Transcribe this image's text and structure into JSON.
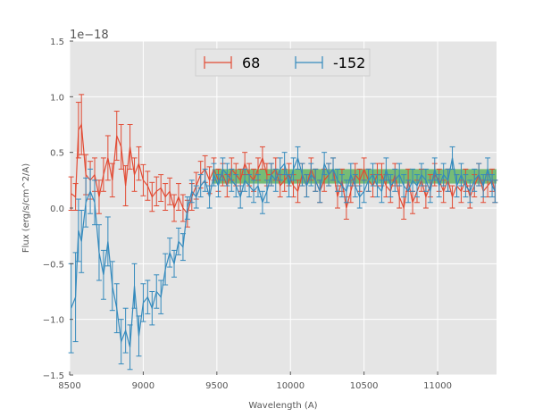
{
  "chart_data": {
    "type": "line",
    "title": "",
    "xlabel": "Wavelength (A)",
    "ylabel": "Flux (erg/s/cm^2/A)",
    "y_offset_label": "1e−18",
    "xlim": [
      8500,
      11400
    ],
    "ylim": [
      -1.5,
      1.5
    ],
    "xticks": [
      8500,
      9000,
      9500,
      10000,
      10500,
      11000
    ],
    "yticks": [
      -1.5,
      -1.0,
      -0.5,
      0.0,
      0.5,
      1.0,
      1.5
    ],
    "xtick_labels": [
      "8500",
      "9000",
      "9500",
      "10000",
      "10500",
      "11000"
    ],
    "ytick_labels": [
      "−1.5",
      "−1.0",
      "−0.5",
      "0.0",
      "0.5",
      "1.0",
      "1.5"
    ],
    "grid": true,
    "legend_position": "top-center",
    "band": {
      "x": [
        9470,
        11400
      ],
      "y": [
        0.22,
        0.35
      ],
      "color": "#2ca02c"
    },
    "series": [
      {
        "name": "68",
        "color": "#E24A33",
        "x": [
          8510,
          8540,
          8560,
          8580,
          8610,
          8640,
          8670,
          8700,
          8730,
          8760,
          8790,
          8820,
          8850,
          8880,
          8910,
          8940,
          8970,
          9000,
          9030,
          9060,
          9090,
          9120,
          9150,
          9180,
          9210,
          9240,
          9270,
          9300,
          9330,
          9360,
          9390,
          9420,
          9450,
          9480,
          9510,
          9540,
          9570,
          9600,
          9630,
          9660,
          9690,
          9720,
          9750,
          9780,
          9810,
          9840,
          9870,
          9900,
          9930,
          9960,
          9990,
          10020,
          10050,
          10080,
          10110,
          10140,
          10170,
          10200,
          10230,
          10260,
          10290,
          10320,
          10350,
          10380,
          10410,
          10440,
          10470,
          10500,
          10530,
          10560,
          10590,
          10620,
          10650,
          10680,
          10710,
          10740,
          10770,
          10800,
          10830,
          10860,
          10890,
          10920,
          10950,
          10980,
          11010,
          11040,
          11070,
          11100,
          11130,
          11160,
          11190,
          11220,
          11250,
          11280,
          11310,
          11340,
          11370,
          11390
        ],
        "y": [
          0.13,
          0.1,
          0.7,
          0.75,
          0.3,
          0.25,
          0.3,
          0.1,
          0.3,
          0.45,
          0.25,
          0.65,
          0.55,
          0.2,
          0.55,
          0.3,
          0.4,
          0.25,
          0.2,
          0.1,
          0.15,
          0.18,
          0.1,
          0.15,
          0.0,
          0.1,
          0.0,
          -0.05,
          0.1,
          0.2,
          0.3,
          0.35,
          0.25,
          0.35,
          0.25,
          0.3,
          0.2,
          0.35,
          0.3,
          0.25,
          0.4,
          0.3,
          0.25,
          0.35,
          0.45,
          0.3,
          0.3,
          0.35,
          0.2,
          0.25,
          0.3,
          0.2,
          0.15,
          0.3,
          0.2,
          0.35,
          0.25,
          0.15,
          0.25,
          0.3,
          0.35,
          0.1,
          0.25,
          0.0,
          0.15,
          0.3,
          0.25,
          0.35,
          0.25,
          0.2,
          0.3,
          0.3,
          0.2,
          0.15,
          0.3,
          0.1,
          0.0,
          0.25,
          0.05,
          0.15,
          0.25,
          0.1,
          0.2,
          0.3,
          0.25,
          0.15,
          0.25,
          0.1,
          0.2,
          0.15,
          0.25,
          0.1,
          0.2,
          0.3,
          0.15,
          0.2,
          0.25,
          0.15
        ],
        "err": [
          0.15,
          0.12,
          0.25,
          0.27,
          0.18,
          0.17,
          0.15,
          0.15,
          0.15,
          0.2,
          0.15,
          0.22,
          0.2,
          0.18,
          0.2,
          0.15,
          0.15,
          0.14,
          0.13,
          0.13,
          0.13,
          0.12,
          0.12,
          0.12,
          0.12,
          0.12,
          0.12,
          0.12,
          0.12,
          0.12,
          0.12,
          0.12,
          0.12,
          0.1,
          0.1,
          0.1,
          0.1,
          0.1,
          0.1,
          0.1,
          0.1,
          0.1,
          0.1,
          0.1,
          0.1,
          0.1,
          0.1,
          0.1,
          0.1,
          0.1,
          0.1,
          0.1,
          0.1,
          0.1,
          0.1,
          0.1,
          0.1,
          0.1,
          0.1,
          0.1,
          0.1,
          0.1,
          0.1,
          0.1,
          0.1,
          0.1,
          0.1,
          0.1,
          0.1,
          0.1,
          0.1,
          0.1,
          0.1,
          0.1,
          0.1,
          0.1,
          0.1,
          0.1,
          0.1,
          0.1,
          0.1,
          0.1,
          0.1,
          0.1,
          0.1,
          0.1,
          0.1,
          0.1,
          0.1,
          0.1,
          0.1,
          0.1,
          0.1,
          0.1,
          0.1,
          0.1,
          0.1,
          0.1
        ]
      },
      {
        "name": "-152",
        "color": "#348ABD",
        "x": [
          8510,
          8540,
          8560,
          8580,
          8610,
          8640,
          8670,
          8700,
          8730,
          8760,
          8790,
          8820,
          8850,
          8880,
          8910,
          8940,
          8970,
          9000,
          9030,
          9060,
          9090,
          9120,
          9150,
          9180,
          9210,
          9240,
          9270,
          9300,
          9330,
          9360,
          9390,
          9420,
          9450,
          9480,
          9510,
          9540,
          9570,
          9600,
          9630,
          9660,
          9690,
          9720,
          9750,
          9780,
          9810,
          9840,
          9870,
          9900,
          9930,
          9960,
          9990,
          10020,
          10050,
          10080,
          10110,
          10140,
          10170,
          10200,
          10230,
          10260,
          10290,
          10320,
          10350,
          10380,
          10410,
          10440,
          10470,
          10500,
          10530,
          10560,
          10590,
          10620,
          10650,
          10680,
          10710,
          10740,
          10770,
          10800,
          10830,
          10860,
          10890,
          10920,
          10950,
          10980,
          11010,
          11040,
          11070,
          11100,
          11130,
          11160,
          11190,
          11220,
          11250,
          11280,
          11310,
          11340,
          11370,
          11390
        ],
        "y": [
          -0.9,
          -0.8,
          -0.2,
          -0.3,
          0.05,
          0.15,
          0.05,
          -0.4,
          -0.6,
          -0.3,
          -0.7,
          -0.9,
          -1.2,
          -1.1,
          -1.25,
          -0.7,
          -1.15,
          -0.85,
          -0.8,
          -0.9,
          -0.75,
          -0.8,
          -0.55,
          -0.4,
          -0.5,
          -0.3,
          -0.35,
          0.0,
          0.15,
          0.1,
          0.2,
          0.25,
          0.1,
          0.3,
          0.2,
          0.35,
          0.3,
          0.25,
          0.2,
          0.1,
          0.25,
          0.2,
          0.15,
          0.2,
          0.05,
          0.15,
          0.3,
          0.25,
          0.35,
          0.4,
          0.2,
          0.35,
          0.45,
          0.3,
          0.2,
          0.3,
          0.25,
          0.15,
          0.4,
          0.3,
          0.35,
          0.25,
          0.2,
          0.15,
          0.3,
          0.2,
          0.1,
          0.15,
          0.25,
          0.3,
          0.2,
          0.15,
          0.35,
          0.2,
          0.25,
          0.3,
          0.2,
          0.15,
          0.25,
          0.2,
          0.3,
          0.25,
          0.15,
          0.35,
          0.2,
          0.3,
          0.25,
          0.45,
          0.2,
          0.3,
          0.2,
          0.15,
          0.25,
          0.3,
          0.2,
          0.35,
          0.2,
          0.15
        ],
        "err": [
          0.4,
          0.4,
          0.28,
          0.28,
          0.22,
          0.2,
          0.2,
          0.25,
          0.22,
          0.22,
          0.22,
          0.22,
          0.2,
          0.2,
          0.2,
          0.2,
          0.18,
          0.17,
          0.15,
          0.15,
          0.15,
          0.15,
          0.14,
          0.13,
          0.12,
          0.12,
          0.12,
          0.1,
          0.1,
          0.1,
          0.1,
          0.1,
          0.1,
          0.1,
          0.1,
          0.1,
          0.1,
          0.1,
          0.1,
          0.1,
          0.1,
          0.1,
          0.1,
          0.1,
          0.1,
          0.1,
          0.1,
          0.1,
          0.1,
          0.1,
          0.1,
          0.1,
          0.1,
          0.1,
          0.1,
          0.1,
          0.1,
          0.1,
          0.1,
          0.1,
          0.1,
          0.1,
          0.1,
          0.1,
          0.1,
          0.1,
          0.1,
          0.1,
          0.1,
          0.1,
          0.1,
          0.1,
          0.1,
          0.1,
          0.1,
          0.1,
          0.1,
          0.1,
          0.1,
          0.1,
          0.1,
          0.1,
          0.1,
          0.1,
          0.1,
          0.1,
          0.1,
          0.1,
          0.1,
          0.1,
          0.1,
          0.1,
          0.1,
          0.1,
          0.1,
          0.1,
          0.1,
          0.1
        ]
      }
    ]
  }
}
